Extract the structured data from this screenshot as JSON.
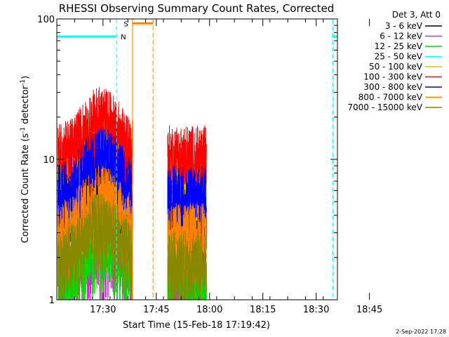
{
  "chart_data": {
    "type": "line",
    "title": "RHESSI Observing Summary Count Rates, Corrected",
    "xlabel": "Start Time (15-Feb-18 17:19:42)",
    "ylabel_main": "Corrected Count Rate (s",
    "ylabel_sup1": "-1",
    "ylabel_mid": " detector",
    "ylabel_sup2": "-1",
    "ylabel_end": ")",
    "y_scale": "log",
    "ylim": [
      1,
      100
    ],
    "y_ticks": [
      {
        "value": 1,
        "label": "1"
      },
      {
        "value": 10,
        "label": "10"
      },
      {
        "value": 100,
        "label": "100"
      }
    ],
    "x_start_minute": 17.0,
    "xlim_minutes": [
      17,
      96
    ],
    "x_ticks": [
      {
        "minute": 30,
        "label": "17:30"
      },
      {
        "minute": 45,
        "label": "17:45"
      },
      {
        "minute": 60,
        "label": "18:00"
      },
      {
        "minute": 75,
        "label": "18:15"
      },
      {
        "minute": 90,
        "label": "18:30"
      },
      {
        "minute": 105,
        "label": "18:45"
      }
    ],
    "legend_title": "Det 3, Att 0",
    "series": [
      {
        "name": "3 - 6 keV",
        "color": "#000000",
        "base": 4.5
      },
      {
        "name": "6 - 12 keV",
        "color": "#e020e0",
        "base": 1.5
      },
      {
        "name": "12 - 25 keV",
        "color": "#00dd00",
        "base": 1.6
      },
      {
        "name": "25 - 50 keV",
        "color": "#00ffff",
        "base": 9.5
      },
      {
        "name": "50 - 100 keV",
        "color": "#c8c800",
        "base": 8.5
      },
      {
        "name": "100 - 300 keV",
        "color": "#ff0000",
        "base": 12.5
      },
      {
        "name": "300 - 800 keV",
        "color": "#0000ff",
        "base": 6.5
      },
      {
        "name": "800 - 7000 keV",
        "color": "#ff8000",
        "base": 3.5
      },
      {
        "name": "7000 - 15000 keV",
        "color": "#888800",
        "base": 2.2
      }
    ],
    "data_segments": [
      {
        "start": 17.3,
        "end": 38.3
      },
      {
        "start": 48.2,
        "end": 59.1
      }
    ],
    "night_intervals": [
      {
        "start": 16.9,
        "end": 33.8,
        "label": "N"
      },
      {
        "start": 94.7,
        "end": 96.0,
        "label": ""
      }
    ],
    "saa_intervals": [
      {
        "start": 38.3,
        "end": 44.1,
        "label": "S"
      }
    ],
    "timestamp": "2-Sep-2022 17:28"
  }
}
